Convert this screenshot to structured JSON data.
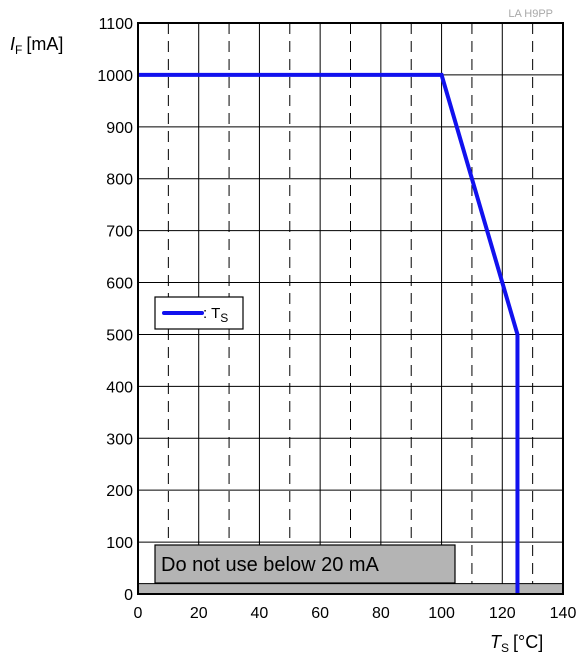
{
  "chart_data": {
    "type": "line",
    "tag": "LA H9PP",
    "y_axis": {
      "symbol": "I",
      "subscript": "F",
      "unit": "[mA]",
      "range": [
        0,
        1100
      ],
      "ticks": [
        "0",
        "100",
        "200",
        "300",
        "400",
        "500",
        "600",
        "700",
        "800",
        "900",
        "1000",
        "1100"
      ]
    },
    "x_axis": {
      "symbol": "T",
      "subscript": "S",
      "unit": "[°C]",
      "range": [
        0,
        140
      ],
      "ticks": [
        "0",
        "20",
        "40",
        "60",
        "80",
        "100",
        "120",
        "140"
      ]
    },
    "grid": {
      "solid_every": 20,
      "dashed_every": 10,
      "horizontal_every": 100
    },
    "series": [
      {
        "name": "T",
        "name_subscript": "S",
        "legend_prefix": ": ",
        "color": "#1111ee",
        "x": [
          0,
          100,
          125,
          125
        ],
        "y": [
          1000,
          1000,
          500,
          0
        ]
      }
    ],
    "forbidden_band": {
      "label": "Do not use below 20 mA",
      "y_max": 20,
      "color": "#b4b4b4"
    },
    "legend_position": "left-middle"
  }
}
